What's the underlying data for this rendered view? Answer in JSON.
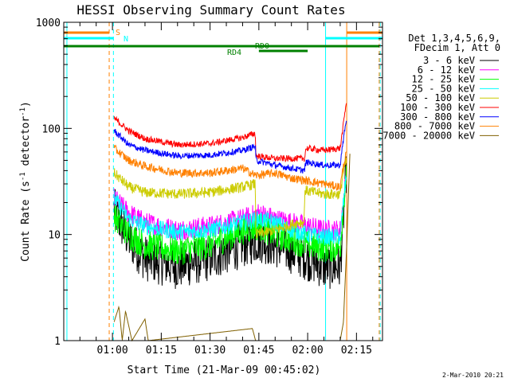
{
  "chart_data": {
    "type": "line",
    "title": "HESSI Observing Summary Count Rates",
    "xlabel": "Start Time (21-Mar-09 00:45:02)",
    "ylabel_main": "Count Rate (s",
    "ylabel_sup1": "-1",
    "ylabel_mid": " detector",
    "ylabel_sup2": "-1",
    "ylabel_end": ")",
    "y_scale": "log",
    "ylim": [
      1,
      1000
    ],
    "xlim_minutes": [
      45.03,
      143.0
    ],
    "x_ticks": [
      {
        "m": 60,
        "label": "01:00"
      },
      {
        "m": 75,
        "label": "01:15"
      },
      {
        "m": 90,
        "label": "01:30"
      },
      {
        "m": 105,
        "label": "01:45"
      },
      {
        "m": 120,
        "label": "02:00"
      },
      {
        "m": 135,
        "label": "02:15"
      }
    ],
    "y_ticks": [
      {
        "v": 1,
        "label": "1"
      },
      {
        "v": 10,
        "label": "10"
      },
      {
        "v": 100,
        "label": "100"
      },
      {
        "v": 1000,
        "label": "1000"
      }
    ],
    "legend": {
      "header": [
        "Det 1,3,4,5,6,9,",
        "FDecim 1, Att 0"
      ],
      "placement": "right",
      "entries": [
        {
          "label": "3 - 6 keV",
          "color": "#000000"
        },
        {
          "label": "6 - 12 keV",
          "color": "#ff00ff"
        },
        {
          "label": "12 - 25 keV",
          "color": "#00ff00"
        },
        {
          "label": "25 - 50 keV",
          "color": "#00ffff"
        },
        {
          "label": "50 - 100 keV",
          "color": "#cccc00"
        },
        {
          "label": "100 - 300 keV",
          "color": "#ff0000"
        },
        {
          "label": "300 - 800 keV",
          "color": "#0000ff"
        },
        {
          "label": "800 - 7000 keV",
          "color": "#ff8000"
        },
        {
          "label": "7000 - 20000 keV",
          "color": "#806000"
        }
      ]
    },
    "flags": [
      {
        "label": "S",
        "color": "#ff8000"
      },
      {
        "label": "N",
        "color": "#00ffff"
      },
      {
        "label": "RD0",
        "color": "#008000"
      },
      {
        "label": "RD4",
        "color": "#008000"
      }
    ],
    "flag_intervals": {
      "S": [
        [
          45.03,
          59.0
        ],
        [
          132.0,
          143.0
        ]
      ],
      "N": [
        [
          45.03,
          60.3
        ],
        [
          125.5,
          143.0
        ]
      ],
      "RD4": [
        [
          45.03,
          142.0
        ]
      ],
      "RD0": [
        [
          105.0,
          120.0
        ]
      ]
    },
    "day_boundaries": [
      {
        "m": 59.0,
        "color": "#ff8000",
        "style": "dash"
      },
      {
        "m": 60.3,
        "color": "#00ffff",
        "style": "dash"
      },
      {
        "m": 125.5,
        "color": "#00ffff",
        "style": "solid"
      },
      {
        "m": 132.0,
        "color": "#ff8000",
        "style": "solid"
      },
      {
        "m": 142.0,
        "color": "#ff8000",
        "style": "dash"
      },
      {
        "m": 142.3,
        "color": "#00ffff",
        "style": "dash"
      },
      {
        "m": 46.0,
        "color": "#00ffff",
        "style": "solid"
      }
    ],
    "series": [
      {
        "name": "3 - 6 keV",
        "color": "#000000",
        "points": [
          [
            60.5,
            17
          ],
          [
            65,
            9
          ],
          [
            70,
            6
          ],
          [
            80,
            5
          ],
          [
            90,
            6
          ],
          [
            100,
            8
          ],
          [
            105,
            9
          ],
          [
            110,
            8
          ],
          [
            115,
            7
          ],
          [
            120,
            6
          ],
          [
            125,
            5
          ],
          [
            128,
            5
          ],
          [
            130,
            5
          ],
          [
            131,
            15
          ],
          [
            132,
            45
          ]
        ]
      },
      {
        "name": "6 - 12 keV",
        "color": "#ff00ff",
        "points": [
          [
            60.5,
            22
          ],
          [
            65,
            16
          ],
          [
            70,
            13
          ],
          [
            80,
            11
          ],
          [
            90,
            12
          ],
          [
            100,
            14
          ],
          [
            105,
            16
          ],
          [
            110,
            14
          ],
          [
            115,
            13
          ],
          [
            120,
            12
          ],
          [
            125,
            11
          ],
          [
            128,
            11
          ],
          [
            130,
            11
          ],
          [
            131,
            20
          ],
          [
            132,
            40
          ]
        ]
      },
      {
        "name": "12 - 25 keV",
        "color": "#00ff00",
        "points": [
          [
            60.5,
            15
          ],
          [
            65,
            10
          ],
          [
            70,
            8
          ],
          [
            80,
            7
          ],
          [
            90,
            8
          ],
          [
            100,
            11
          ],
          [
            105,
            12
          ],
          [
            110,
            10
          ],
          [
            115,
            9
          ],
          [
            120,
            8
          ],
          [
            125,
            7.5
          ],
          [
            128,
            7.5
          ],
          [
            130,
            7.5
          ],
          [
            131,
            20
          ],
          [
            132,
            40
          ]
        ]
      },
      {
        "name": "25 - 50 keV",
        "color": "#00ffff",
        "points": [
          [
            60.5,
            22
          ],
          [
            65,
            14
          ],
          [
            70,
            12
          ],
          [
            80,
            10.5
          ],
          [
            90,
            11
          ],
          [
            100,
            13
          ],
          [
            105,
            14
          ],
          [
            110,
            13
          ],
          [
            115,
            11
          ],
          [
            120,
            10
          ],
          [
            125,
            9.5
          ],
          [
            128,
            9.5
          ],
          [
            130,
            9.5
          ],
          [
            131,
            20
          ],
          [
            132,
            40
          ]
        ]
      },
      {
        "name": "50 - 100 keV",
        "color": "#cccc00",
        "points": [
          [
            60.5,
            38
          ],
          [
            65,
            28
          ],
          [
            70,
            25
          ],
          [
            80,
            24
          ],
          [
            90,
            25
          ],
          [
            100,
            28
          ],
          [
            103.9,
            30
          ],
          [
            104.1,
            10
          ],
          [
            110,
            11
          ],
          [
            117,
            13
          ],
          [
            118.9,
            13
          ],
          [
            119.1,
            26
          ],
          [
            125,
            24
          ],
          [
            130,
            24
          ],
          [
            131,
            40
          ],
          [
            132,
            50
          ]
        ]
      },
      {
        "name": "100 - 300 keV",
        "color": "#ff0000",
        "points": [
          [
            60.5,
            125
          ],
          [
            65,
            95
          ],
          [
            70,
            80
          ],
          [
            80,
            70
          ],
          [
            90,
            72
          ],
          [
            100,
            82
          ],
          [
            103.9,
            90
          ],
          [
            104.1,
            55
          ],
          [
            110,
            52
          ],
          [
            119,
            52
          ],
          [
            119.5,
            65
          ],
          [
            125,
            62
          ],
          [
            130,
            65
          ],
          [
            131,
            110
          ],
          [
            132,
            190
          ]
        ]
      },
      {
        "name": "300 - 800 keV",
        "color": "#0000ff",
        "points": [
          [
            60.5,
            95
          ],
          [
            65,
            70
          ],
          [
            70,
            62
          ],
          [
            80,
            55
          ],
          [
            90,
            56
          ],
          [
            100,
            62
          ],
          [
            103.9,
            68
          ],
          [
            104.1,
            50
          ],
          [
            110,
            45
          ],
          [
            119,
            40
          ],
          [
            119.5,
            48
          ],
          [
            125,
            45
          ],
          [
            130,
            45
          ],
          [
            131,
            80
          ],
          [
            132,
            130
          ]
        ]
      },
      {
        "name": "800 - 7000 keV",
        "color": "#ff8000",
        "points": [
          [
            60.5,
            65
          ],
          [
            65,
            50
          ],
          [
            70,
            44
          ],
          [
            80,
            38
          ],
          [
            90,
            38
          ],
          [
            100,
            42
          ],
          [
            104,
            36
          ],
          [
            110,
            38
          ],
          [
            115,
            34
          ],
          [
            120,
            32
          ],
          [
            125,
            30
          ],
          [
            130,
            28
          ],
          [
            131,
            45
          ],
          [
            132,
            60
          ]
        ]
      },
      {
        "name": "7000 - 20000 keV",
        "color": "#806000",
        "points": [
          [
            60.5,
            1.5
          ],
          [
            62,
            2.1
          ],
          [
            63,
            1
          ],
          [
            64,
            1.9
          ],
          [
            66,
            1
          ],
          [
            70,
            1.6
          ],
          [
            71,
            1
          ],
          [
            103,
            1.3
          ],
          [
            104,
            1
          ],
          [
            125,
            1
          ],
          [
            130,
            1
          ],
          [
            131,
            1.5
          ],
          [
            132,
            8
          ],
          [
            133,
            60
          ]
        ]
      }
    ]
  },
  "footer": {
    "timestamp": "2-Mar-2010 20:21"
  }
}
